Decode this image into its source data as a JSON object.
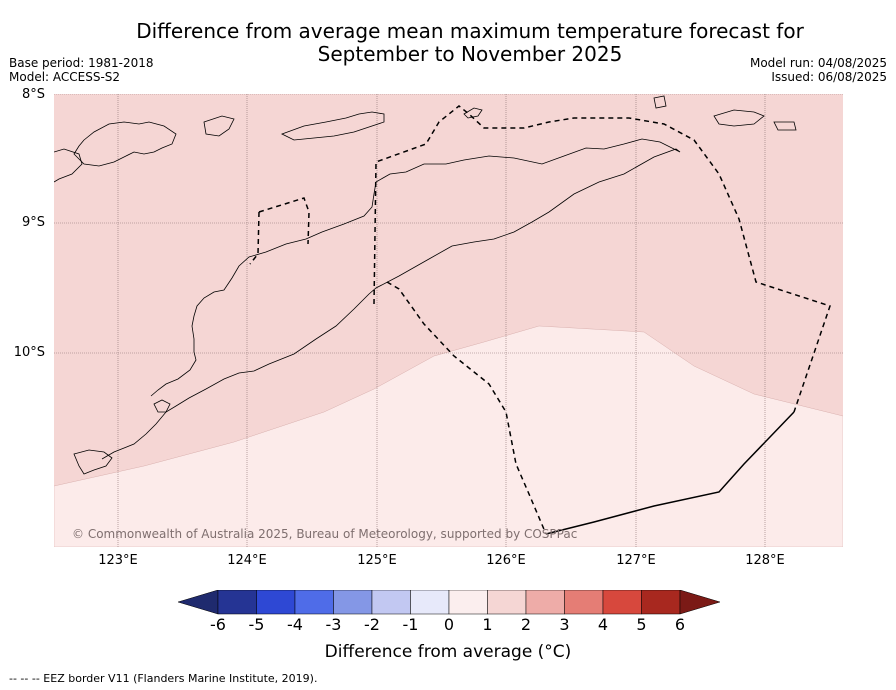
{
  "title": {
    "line1": "Difference from average mean maximum temperature forecast for",
    "line2": "September to November 2025"
  },
  "meta_left": {
    "base_period": "Base period: 1981-2018",
    "model": "Model: ACCESS-S2"
  },
  "meta_right": {
    "model_run": "Model run: 04/08/2025",
    "issued": "Issued: 06/08/2025"
  },
  "map": {
    "lat_labels": [
      "8°S",
      "9°S",
      "10°S"
    ],
    "lon_labels": [
      "123°E",
      "124°E",
      "125°E",
      "126°E",
      "127°E",
      "128°E"
    ],
    "lat_range": [
      -11.5,
      -8.0
    ],
    "lon_range": [
      122.5,
      128.6
    ],
    "copyright": "© Commonwealth of Australia 2025, Bureau of Meteorology, supported by COSPPac",
    "regions": [
      {
        "anomaly_range": "1 to 2 °C",
        "color": "#f5d6d4"
      },
      {
        "anomaly_range": "0 to 1 °C",
        "color": "#fcebea"
      }
    ]
  },
  "colorbar": {
    "ticks": [
      "-6",
      "-5",
      "-4",
      "-3",
      "-2",
      "-1",
      "0",
      "1",
      "2",
      "3",
      "4",
      "5",
      "6"
    ],
    "colors": [
      "#253494",
      "#2e48d4",
      "#4f6ce8",
      "#8497e6",
      "#c2c8f2",
      "#e7e9fa",
      "#fbeeee",
      "#f5d6d4",
      "#eeaca8",
      "#e57d75",
      "#d7483d",
      "#a8281f"
    ],
    "under_color": "#1f2a6e",
    "over_color": "#7b1a16",
    "label": "Difference from average (°C)"
  },
  "footnote": "--  --  -- EEZ border V11 (Flanders Marine Institute, 2019)."
}
